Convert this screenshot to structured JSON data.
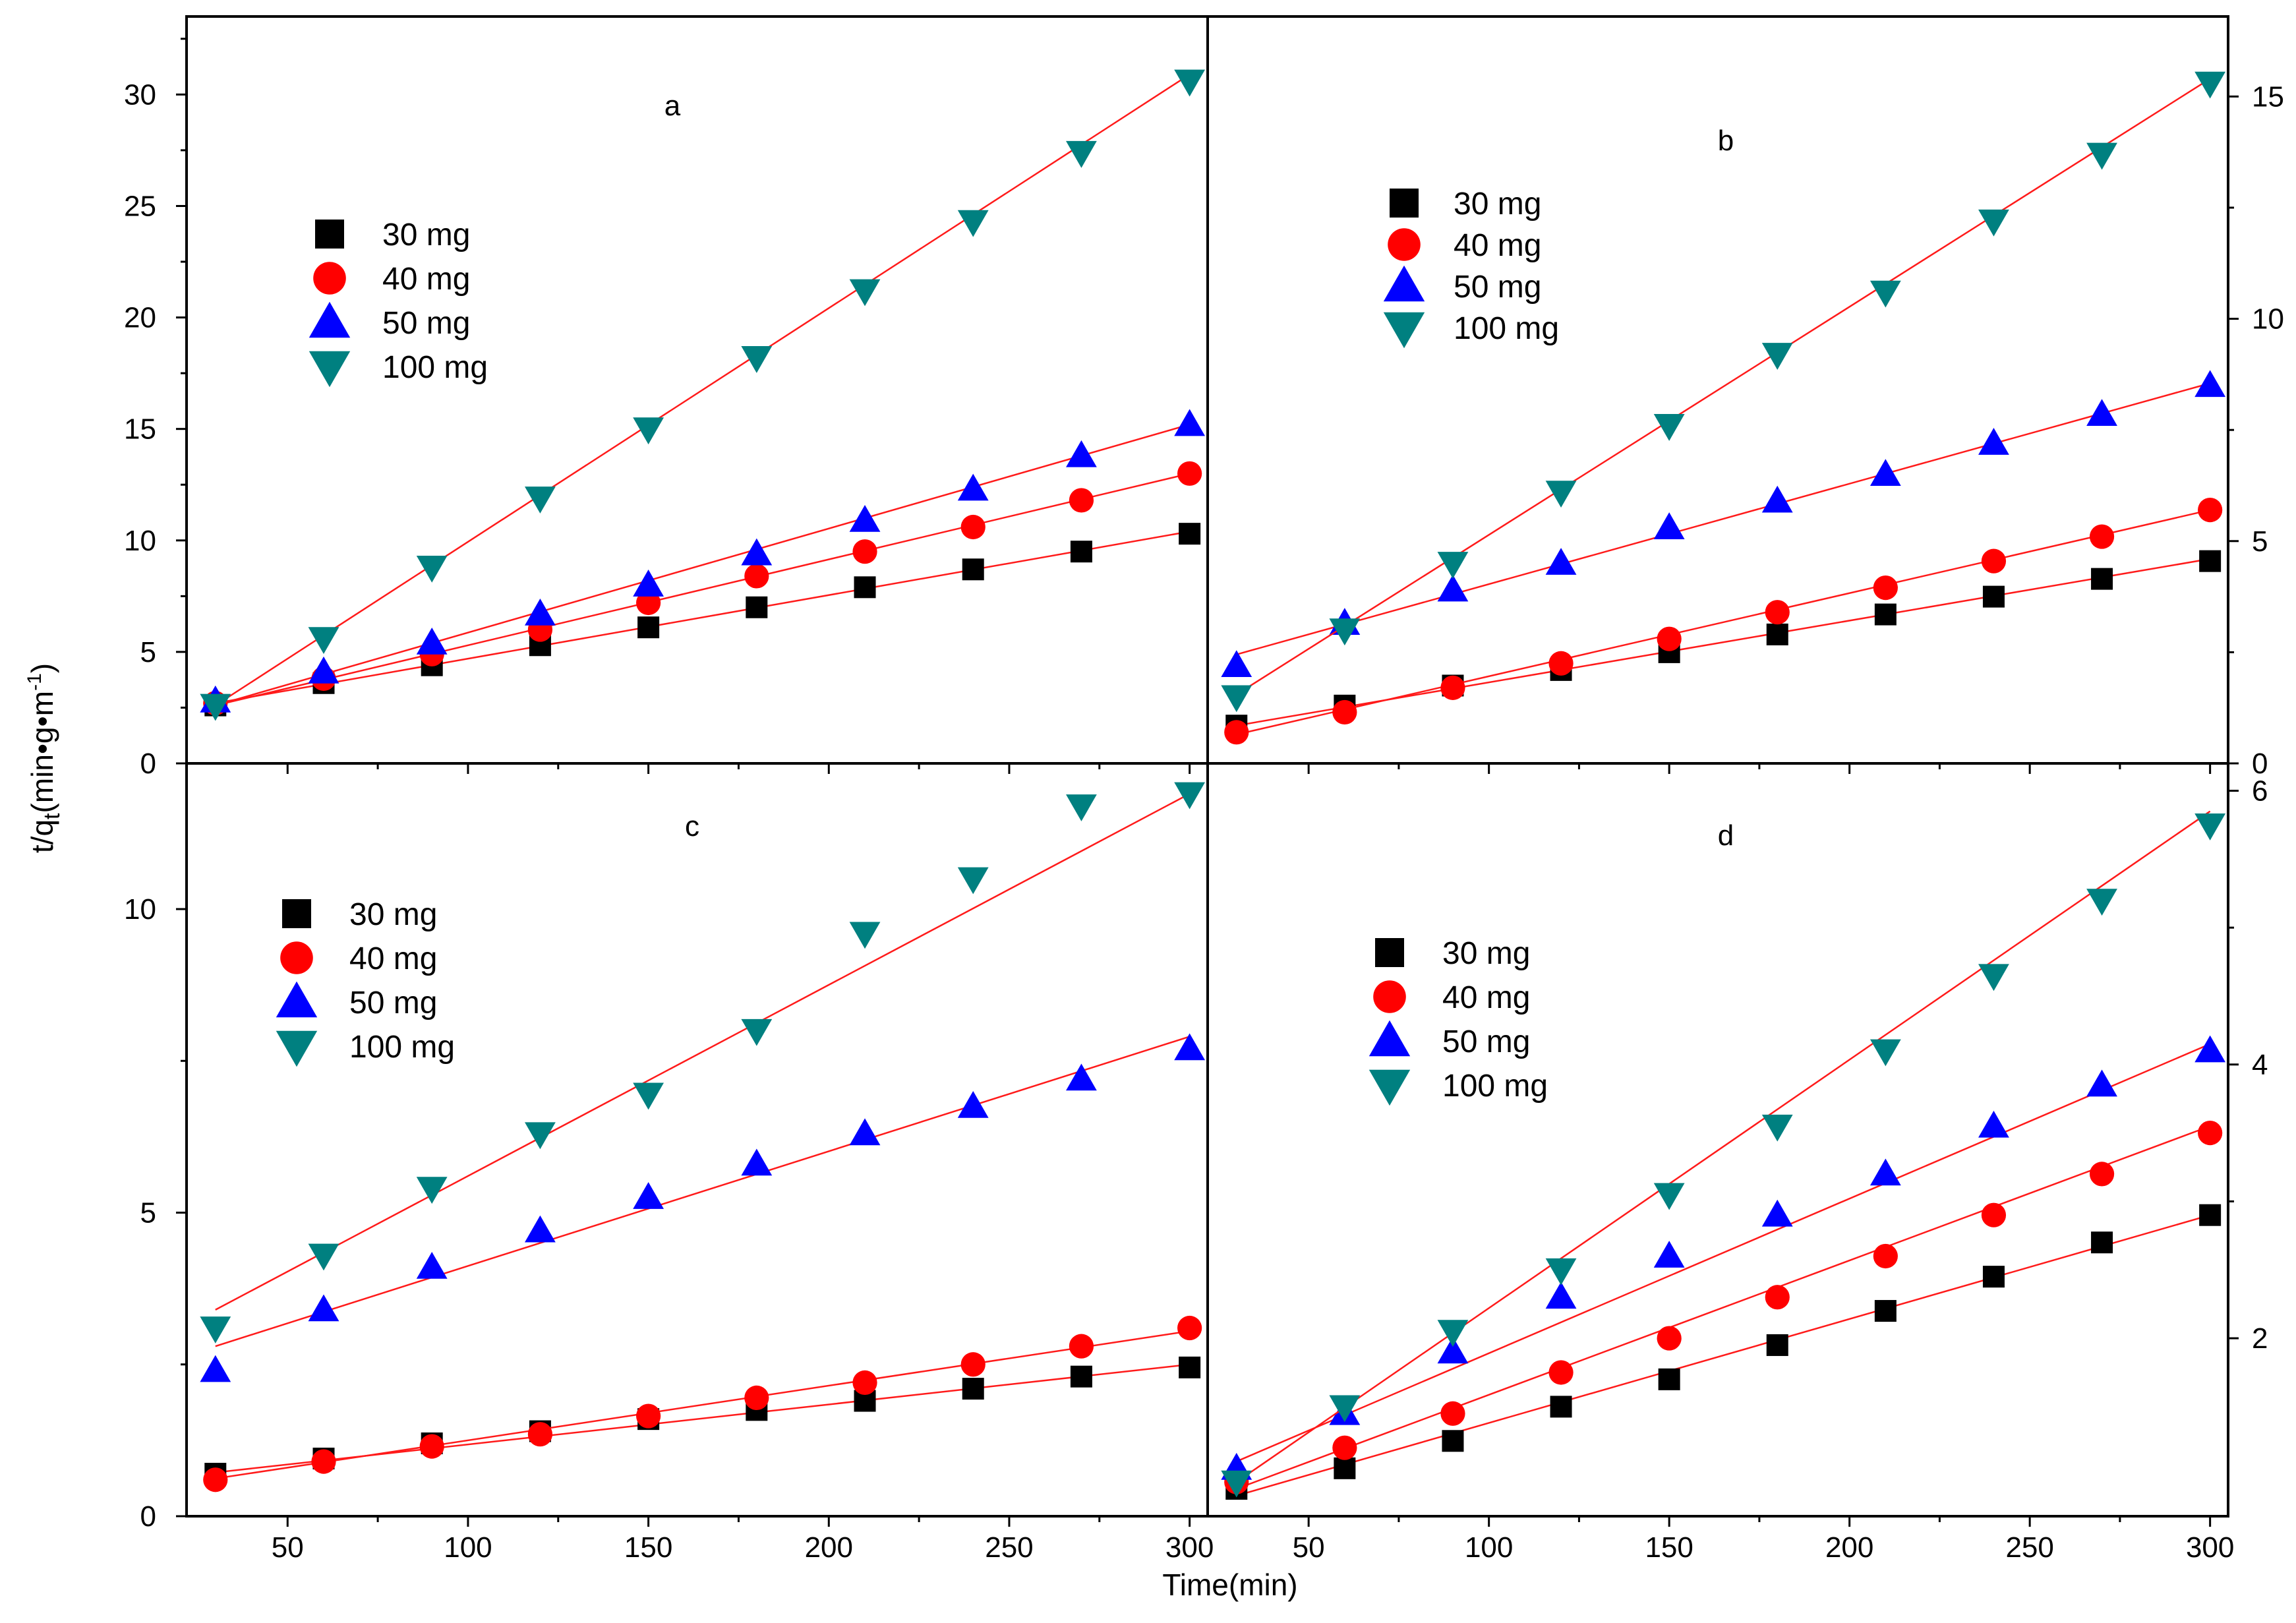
{
  "figure": {
    "x_axis_title": "Time(min)",
    "y_axis_title_main": "t/q",
    "y_axis_title_sub": "t",
    "y_axis_title_rest": "(min•g•m",
    "y_axis_title_sup": "-1",
    "y_axis_title_end": ")"
  },
  "colors": {
    "30 mg": "#000000",
    "40 mg": "#ff0000",
    "50 mg": "#0000ff",
    "100 mg": "#008080",
    "fit": "#ff1a1a"
  },
  "chart_data": [
    {
      "type": "scatter",
      "panel": "a",
      "title": "a",
      "xlabel": "Time(min)",
      "ylabel": "t/qt(min•g•m-1)",
      "xlim": [
        22,
        305
      ],
      "ylim": [
        0,
        33.5
      ],
      "x_ticks": [
        50,
        100,
        150,
        200,
        250,
        300
      ],
      "x_tick_labels": [
        "",
        "",
        "",
        "",
        "",
        ""
      ],
      "y_ticks": [
        0,
        5,
        10,
        15,
        20,
        25,
        30
      ],
      "y_tick_labels": [
        "0",
        "5",
        "10",
        "15",
        "20",
        "25",
        "30"
      ],
      "y_axis_side": "left",
      "legend_position": "upper-left",
      "x": [
        30,
        60,
        90,
        120,
        150,
        180,
        210,
        240,
        270,
        300
      ],
      "series": [
        {
          "name": "30 mg",
          "marker": "square",
          "values": [
            2.6,
            3.6,
            4.4,
            5.3,
            6.1,
            7.0,
            7.9,
            8.7,
            9.5,
            10.3
          ],
          "fit": [
            2.7,
            10.4
          ]
        },
        {
          "name": "40 mg",
          "marker": "circle",
          "values": [
            2.7,
            3.8,
            4.9,
            6.0,
            7.2,
            8.4,
            9.5,
            10.6,
            11.8,
            13.0
          ],
          "fit": [
            2.6,
            13.0
          ]
        },
        {
          "name": "50 mg",
          "marker": "triangle-up",
          "values": [
            2.8,
            4.1,
            5.4,
            6.7,
            8.0,
            9.4,
            10.9,
            12.3,
            13.8,
            15.2
          ],
          "fit": [
            2.6,
            15.2
          ]
        },
        {
          "name": "100 mg",
          "marker": "triangle-down",
          "values": [
            2.6,
            5.6,
            8.8,
            11.9,
            15.0,
            18.2,
            21.2,
            24.3,
            27.4,
            30.6
          ],
          "fit": [
            2.6,
            30.9
          ]
        }
      ]
    },
    {
      "type": "scatter",
      "panel": "b",
      "title": "b",
      "xlabel": "Time(min)",
      "ylabel": "t/qt(min•g•m-1)",
      "xlim": [
        22,
        305
      ],
      "ylim": [
        0,
        16.8
      ],
      "x_ticks": [
        50,
        100,
        150,
        200,
        250,
        300
      ],
      "x_tick_labels": [
        "",
        "",
        "",
        "",
        "",
        ""
      ],
      "y_ticks": [
        0,
        5,
        10,
        15
      ],
      "y_tick_labels": [
        "0",
        "5",
        "10",
        "15"
      ],
      "y_axis_side": "right",
      "legend_position": "upper-left",
      "x": [
        30,
        60,
        90,
        120,
        150,
        180,
        210,
        240,
        270,
        300
      ],
      "series": [
        {
          "name": "30 mg",
          "marker": "square",
          "values": [
            0.85,
            1.3,
            1.75,
            2.1,
            2.5,
            2.9,
            3.35,
            3.75,
            4.15,
            4.55
          ],
          "fit": [
            0.85,
            4.6
          ]
        },
        {
          "name": "40 mg",
          "marker": "circle",
          "values": [
            0.7,
            1.15,
            1.7,
            2.25,
            2.8,
            3.4,
            3.95,
            4.55,
            5.1,
            5.7
          ],
          "fit": [
            0.65,
            5.7
          ]
        },
        {
          "name": "50 mg",
          "marker": "triangle-up",
          "values": [
            2.2,
            3.15,
            3.9,
            4.5,
            5.3,
            5.9,
            6.5,
            7.2,
            7.85,
            8.5
          ],
          "fit": [
            2.45,
            8.55
          ]
        },
        {
          "name": "100 mg",
          "marker": "triangle-down",
          "values": [
            1.5,
            3.0,
            4.5,
            6.1,
            7.6,
            9.2,
            10.6,
            12.2,
            13.7,
            15.3
          ],
          "fit": [
            1.55,
            15.4
          ]
        }
      ]
    },
    {
      "type": "scatter",
      "panel": "c",
      "title": "c",
      "xlabel": "Time(min)",
      "ylabel": "t/qt(min•g•m-1)",
      "xlim": [
        22,
        305
      ],
      "ylim": [
        0,
        12.4
      ],
      "x_ticks": [
        50,
        100,
        150,
        200,
        250,
        300
      ],
      "x_tick_labels": [
        "50",
        "100",
        "150",
        "200",
        "250",
        "300"
      ],
      "y_ticks": [
        0,
        5,
        10
      ],
      "y_tick_labels": [
        "0",
        "5",
        "10"
      ],
      "y_axis_side": "left",
      "legend_position": "upper-left",
      "x": [
        30,
        60,
        90,
        120,
        150,
        180,
        210,
        240,
        270,
        300
      ],
      "series": [
        {
          "name": "30 mg",
          "marker": "square",
          "values": [
            0.7,
            0.95,
            1.2,
            1.4,
            1.6,
            1.75,
            1.9,
            2.1,
            2.3,
            2.45
          ],
          "fit": [
            0.72,
            2.5
          ]
        },
        {
          "name": "40 mg",
          "marker": "circle",
          "values": [
            0.6,
            0.9,
            1.15,
            1.35,
            1.65,
            1.95,
            2.2,
            2.5,
            2.8,
            3.1
          ],
          "fit": [
            0.62,
            3.05
          ]
        },
        {
          "name": "50 mg",
          "marker": "triangle-up",
          "values": [
            2.4,
            3.4,
            4.1,
            4.7,
            5.25,
            5.8,
            6.3,
            6.75,
            7.2,
            7.7
          ],
          "fit": [
            2.8,
            7.9
          ]
        },
        {
          "name": "100 mg",
          "marker": "triangle-down",
          "values": [
            3.1,
            4.3,
            5.4,
            6.3,
            6.95,
            8.0,
            9.6,
            10.5,
            11.7,
            11.9
          ],
          "fit": [
            3.4,
            11.9
          ]
        }
      ]
    },
    {
      "type": "scatter",
      "panel": "d",
      "title": "d",
      "xlabel": "Time(min)",
      "ylabel": "t/qt(min•g•m-1)",
      "xlim": [
        22,
        305
      ],
      "ylim": [
        0.7,
        6.2
      ],
      "x_ticks": [
        50,
        100,
        150,
        200,
        250,
        300
      ],
      "x_tick_labels": [
        "50",
        "100",
        "150",
        "200",
        "250",
        "300"
      ],
      "y_ticks": [
        2,
        4,
        6
      ],
      "y_tick_labels": [
        "2",
        "4",
        "6"
      ],
      "y_axis_side": "right",
      "legend_position": "upper-left",
      "x": [
        30,
        60,
        90,
        120,
        150,
        180,
        210,
        240,
        270,
        300
      ],
      "series": [
        {
          "name": "30 mg",
          "marker": "square",
          "values": [
            0.9,
            1.05,
            1.25,
            1.5,
            1.7,
            1.95,
            2.2,
            2.45,
            2.7,
            2.9
          ],
          "fit": [
            0.85,
            2.9
          ]
        },
        {
          "name": "40 mg",
          "marker": "circle",
          "values": [
            0.95,
            1.2,
            1.45,
            1.75,
            2.0,
            2.3,
            2.6,
            2.9,
            3.2,
            3.5
          ],
          "fit": [
            0.9,
            3.55
          ]
        },
        {
          "name": "50 mg",
          "marker": "triangle-up",
          "values": [
            1.05,
            1.45,
            1.9,
            2.3,
            2.6,
            2.9,
            3.2,
            3.55,
            3.85,
            4.1
          ],
          "fit": [
            1.1,
            4.15
          ]
        },
        {
          "name": "100 mg",
          "marker": "triangle-down",
          "values": [
            0.95,
            1.5,
            2.05,
            2.5,
            3.05,
            3.55,
            4.1,
            4.65,
            5.2,
            5.75
          ],
          "fit": [
            0.95,
            5.85
          ]
        }
      ]
    }
  ]
}
